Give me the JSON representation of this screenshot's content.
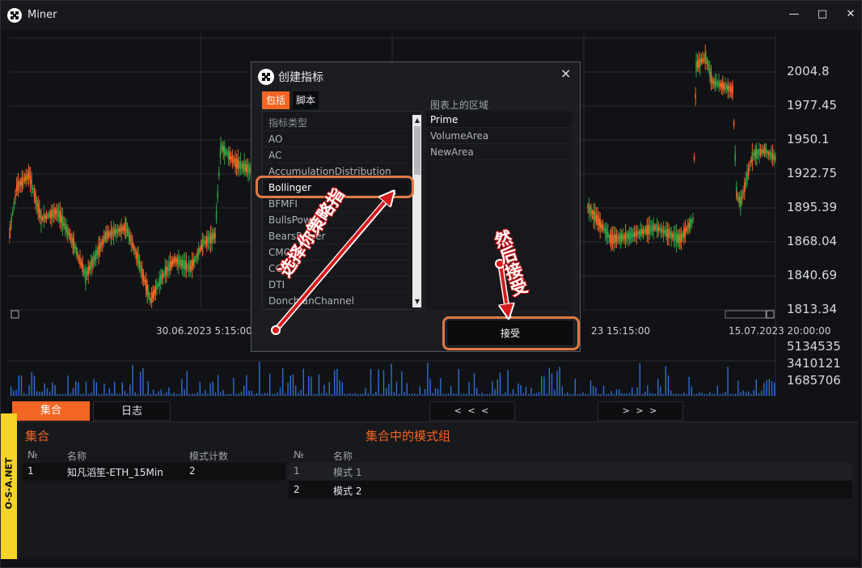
{
  "window": {
    "title": "Miner",
    "controls": [
      "—",
      "□",
      "✕"
    ]
  },
  "chart": {
    "price_ticks": [
      "2004.8",
      "1977.45",
      "1950.1",
      "1922.75",
      "1895.39",
      "1868.04",
      "1840.69",
      "1813.34"
    ],
    "volume_ticks": [
      "5134535",
      "3410121",
      "1685706"
    ],
    "date_labels": [
      "30.06.2023 5:15:00",
      "23 15:15:00",
      "15.07.2023 20:00:00"
    ],
    "colors": {
      "up": "#2f9e44",
      "down": "#f26522",
      "volume": "#2f6fd6"
    }
  },
  "dialog": {
    "title": "创建指标",
    "close": "×",
    "tabs": [
      "包括",
      "脚本"
    ],
    "indicator_list": {
      "header": "指标类型",
      "items": [
        "AO",
        "AC",
        "AccumulationDistribution",
        "Bollinger",
        "BFMFI",
        "BullsPower",
        "BearsPower",
        "CMO",
        "CCI",
        "DTI",
        "DonchianChannel"
      ],
      "selected": "Bollinger",
      "scroll_up": "▲",
      "scroll_down": "▼"
    },
    "area_label": "图表上的区域",
    "areas": [
      "Prime",
      "VolumeArea",
      "NewArea"
    ],
    "selected_area": "Prime",
    "accept_label": "接受"
  },
  "annotations": {
    "select_hint": "选择你策略指",
    "then_accept_hint": "然后接受"
  },
  "bottom": {
    "tabs": [
      "集合",
      "日志"
    ],
    "pager_prev": "< < <",
    "pager_next": "> > >",
    "collections": {
      "title": "集合",
      "headers": [
        "№",
        "名称",
        "模式计数"
      ],
      "rows": [
        [
          "1",
          "知凡滔笙-ETH_15Min",
          "2"
        ]
      ]
    },
    "pattern_groups": {
      "title": "集合中的模式组",
      "headers": [
        "№",
        "名称"
      ],
      "rows": [
        [
          "1",
          "模式 1"
        ],
        [
          "2",
          "模式 2"
        ]
      ]
    },
    "side_badge": "O-S-A.NET"
  }
}
